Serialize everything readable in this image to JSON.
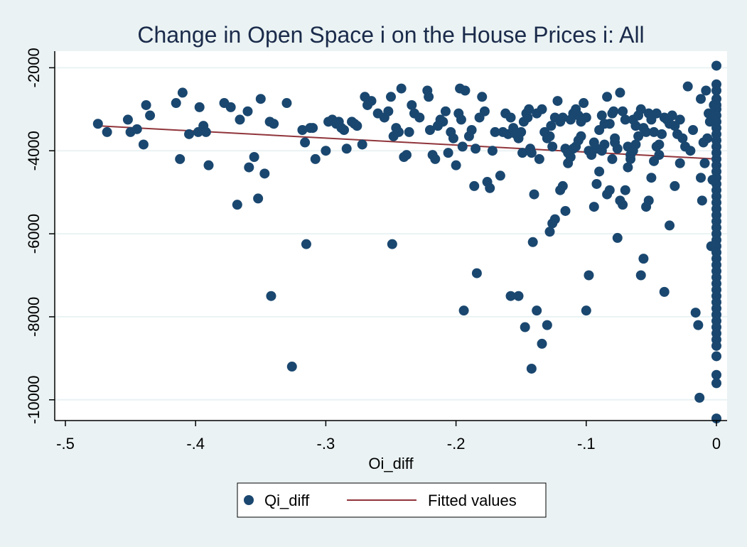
{
  "chart_data": {
    "type": "scatter",
    "title": "Change in Open Space i on the House Prices i: All",
    "xlabel": "Oi_diff",
    "ylabel": "",
    "xlim": [
      -0.5,
      0
    ],
    "ylim": [
      -10500,
      -1600
    ],
    "x_ticks": [
      -0.5,
      -0.4,
      -0.3,
      -0.2,
      -0.1,
      0
    ],
    "x_tick_labels": [
      "-.5",
      "-.4",
      "-.3",
      "-.2",
      "-.1",
      "0"
    ],
    "y_ticks": [
      -2000,
      -4000,
      -6000,
      -8000,
      -10000
    ],
    "y_tick_labels": [
      "-2000",
      "-4000",
      "-6000",
      "-8000",
      "-10000"
    ],
    "grid": true,
    "legend_position": "bottom",
    "colors": {
      "markers": "#1a476f",
      "fit_line": "#90353b",
      "background": "#eaf2f3",
      "plot_area": "#ffffff",
      "grid": "#eaf2f3"
    },
    "series": [
      {
        "name": "Qi_diff",
        "kind": "scatter",
        "points": [
          [
            -0.475,
            -3350
          ],
          [
            -0.468,
            -3550
          ],
          [
            -0.452,
            -3250
          ],
          [
            -0.45,
            -3550
          ],
          [
            -0.445,
            -3480
          ],
          [
            -0.44,
            -3850
          ],
          [
            -0.438,
            -2900
          ],
          [
            -0.435,
            -3150
          ],
          [
            -0.415,
            -2850
          ],
          [
            -0.412,
            -4200
          ],
          [
            -0.41,
            -2600
          ],
          [
            -0.405,
            -3600
          ],
          [
            -0.398,
            -3550
          ],
          [
            -0.397,
            -2950
          ],
          [
            -0.394,
            -3400
          ],
          [
            -0.392,
            -3550
          ],
          [
            -0.39,
            -4350
          ],
          [
            -0.378,
            -2850
          ],
          [
            -0.373,
            -2950
          ],
          [
            -0.368,
            -5300
          ],
          [
            -0.366,
            -3250
          ],
          [
            -0.36,
            -3050
          ],
          [
            -0.359,
            -4400
          ],
          [
            -0.355,
            -4150
          ],
          [
            -0.352,
            -5150
          ],
          [
            -0.35,
            -2750
          ],
          [
            -0.347,
            -4550
          ],
          [
            -0.343,
            -3300
          ],
          [
            -0.342,
            -7500
          ],
          [
            -0.34,
            -3350
          ],
          [
            -0.33,
            -2850
          ],
          [
            -0.326,
            -9200
          ],
          [
            -0.318,
            -3500
          ],
          [
            -0.316,
            -3800
          ],
          [
            -0.315,
            -6250
          ],
          [
            -0.312,
            -3450
          ],
          [
            -0.31,
            -3450
          ],
          [
            -0.308,
            -4200
          ],
          [
            -0.3,
            -4000
          ],
          [
            -0.298,
            -3300
          ],
          [
            -0.295,
            -3250
          ],
          [
            -0.292,
            -3350
          ],
          [
            -0.29,
            -3300
          ],
          [
            -0.288,
            -3450
          ],
          [
            -0.286,
            -3500
          ],
          [
            -0.284,
            -3950
          ],
          [
            -0.28,
            -3300
          ],
          [
            -0.278,
            -3350
          ],
          [
            -0.276,
            -3400
          ],
          [
            -0.272,
            -3850
          ],
          [
            -0.27,
            -2700
          ],
          [
            -0.268,
            -2900
          ],
          [
            -0.265,
            -2800
          ],
          [
            -0.26,
            -3100
          ],
          [
            -0.255,
            -3200
          ],
          [
            -0.252,
            -3050
          ],
          [
            -0.25,
            -2700
          ],
          [
            -0.249,
            -6250
          ],
          [
            -0.248,
            -3650
          ],
          [
            -0.246,
            -3450
          ],
          [
            -0.244,
            -3550
          ],
          [
            -0.242,
            -2500
          ],
          [
            -0.24,
            -4150
          ],
          [
            -0.238,
            -4100
          ],
          [
            -0.236,
            -3550
          ],
          [
            -0.234,
            -2900
          ],
          [
            -0.232,
            -3100
          ],
          [
            -0.228,
            -3200
          ],
          [
            -0.222,
            -2550
          ],
          [
            -0.221,
            -2700
          ],
          [
            -0.22,
            -3500
          ],
          [
            -0.218,
            -4100
          ],
          [
            -0.216,
            -4200
          ],
          [
            -0.214,
            -3400
          ],
          [
            -0.212,
            -3250
          ],
          [
            -0.21,
            -3300
          ],
          [
            -0.208,
            -3050
          ],
          [
            -0.206,
            -4050
          ],
          [
            -0.204,
            -3550
          ],
          [
            -0.202,
            -3700
          ],
          [
            -0.2,
            -4350
          ],
          [
            -0.198,
            -3100
          ],
          [
            -0.197,
            -2500
          ],
          [
            -0.196,
            -3250
          ],
          [
            -0.195,
            -3900
          ],
          [
            -0.194,
            -7850
          ],
          [
            -0.193,
            -2550
          ],
          [
            -0.19,
            -3650
          ],
          [
            -0.188,
            -3500
          ],
          [
            -0.186,
            -4850
          ],
          [
            -0.185,
            -3950
          ],
          [
            -0.184,
            -6950
          ],
          [
            -0.182,
            -3200
          ],
          [
            -0.18,
            -2700
          ],
          [
            -0.178,
            -3050
          ],
          [
            -0.176,
            -4750
          ],
          [
            -0.174,
            -4900
          ],
          [
            -0.172,
            -4000
          ],
          [
            -0.17,
            -3550
          ],
          [
            -0.166,
            -4600
          ],
          [
            -0.164,
            -3550
          ],
          [
            -0.162,
            -3100
          ],
          [
            -0.16,
            -3600
          ],
          [
            -0.158,
            -3200
          ],
          [
            -0.156,
            -3450
          ],
          [
            -0.154,
            -3600
          ],
          [
            -0.152,
            -3700
          ],
          [
            -0.15,
            -3550
          ],
          [
            -0.149,
            -4050
          ],
          [
            -0.148,
            -3300
          ],
          [
            -0.146,
            -3100
          ],
          [
            -0.145,
            -3200
          ],
          [
            -0.144,
            -3000
          ],
          [
            -0.143,
            -3950
          ],
          [
            -0.142,
            -4050
          ],
          [
            -0.141,
            -6200
          ],
          [
            -0.14,
            -5050
          ],
          [
            -0.138,
            -3100
          ],
          [
            -0.136,
            -4200
          ],
          [
            -0.134,
            -3000
          ],
          [
            -0.132,
            -3550
          ],
          [
            -0.13,
            -3700
          ],
          [
            -0.128,
            -3650
          ],
          [
            -0.127,
            -3400
          ],
          [
            -0.126,
            -3900
          ],
          [
            -0.124,
            -3200
          ],
          [
            -0.122,
            -2800
          ],
          [
            -0.12,
            -3300
          ],
          [
            -0.118,
            -3200
          ],
          [
            -0.116,
            -3950
          ],
          [
            -0.114,
            -4050
          ],
          [
            -0.112,
            -3250
          ],
          [
            -0.11,
            -3100
          ],
          [
            -0.108,
            -3000
          ],
          [
            -0.106,
            -3150
          ],
          [
            -0.104,
            -3300
          ],
          [
            -0.102,
            -2850
          ],
          [
            -0.1,
            -3200
          ],
          [
            -0.098,
            -4000
          ],
          [
            -0.096,
            -4100
          ],
          [
            -0.094,
            -3800
          ],
          [
            -0.092,
            -3950
          ],
          [
            -0.09,
            -3500
          ],
          [
            -0.088,
            -3150
          ],
          [
            -0.086,
            -3350
          ],
          [
            -0.084,
            -2700
          ],
          [
            -0.082,
            -3350
          ],
          [
            -0.08,
            -3100
          ],
          [
            -0.079,
            -3050
          ],
          [
            -0.078,
            -3700
          ],
          [
            -0.076,
            -3950
          ],
          [
            -0.074,
            -2600
          ],
          [
            -0.072,
            -3050
          ],
          [
            -0.07,
            -3250
          ],
          [
            -0.068,
            -3900
          ],
          [
            -0.066,
            -4100
          ],
          [
            -0.064,
            -3250
          ],
          [
            -0.062,
            -3400
          ],
          [
            -0.06,
            -3150
          ],
          [
            -0.058,
            -3000
          ],
          [
            -0.056,
            -3450
          ],
          [
            -0.054,
            -3550
          ],
          [
            -0.052,
            -3100
          ],
          [
            -0.05,
            -3250
          ],
          [
            -0.048,
            -3550
          ],
          [
            -0.046,
            -3100
          ],
          [
            -0.044,
            -3850
          ],
          [
            -0.042,
            -3600
          ],
          [
            -0.04,
            -3200
          ],
          [
            -0.038,
            -3250
          ],
          [
            -0.036,
            -3350
          ],
          [
            -0.034,
            -3150
          ],
          [
            -0.032,
            -3400
          ],
          [
            -0.03,
            -3600
          ],
          [
            -0.028,
            -3250
          ],
          [
            -0.026,
            -3700
          ],
          [
            -0.158,
            -7500
          ],
          [
            -0.152,
            -7500
          ],
          [
            -0.147,
            -8250
          ],
          [
            -0.142,
            -9250
          ],
          [
            -0.138,
            -7850
          ],
          [
            -0.134,
            -8650
          ],
          [
            -0.13,
            -8200
          ],
          [
            -0.128,
            -5950
          ],
          [
            -0.126,
            -5750
          ],
          [
            -0.124,
            -5650
          ],
          [
            -0.12,
            -4950
          ],
          [
            -0.118,
            -4850
          ],
          [
            -0.116,
            -5450
          ],
          [
            -0.114,
            -4300
          ],
          [
            -0.112,
            -4150
          ],
          [
            -0.11,
            -3950
          ],
          [
            -0.108,
            -3900
          ],
          [
            -0.106,
            -3750
          ],
          [
            -0.104,
            -3650
          ],
          [
            -0.1,
            -7850
          ],
          [
            -0.098,
            -7000
          ],
          [
            -0.094,
            -5350
          ],
          [
            -0.092,
            -4800
          ],
          [
            -0.09,
            -4500
          ],
          [
            -0.088,
            -4000
          ],
          [
            -0.086,
            -3850
          ],
          [
            -0.084,
            -5050
          ],
          [
            -0.082,
            -4950
          ],
          [
            -0.08,
            -4200
          ],
          [
            -0.078,
            -3800
          ],
          [
            -0.076,
            -6100
          ],
          [
            -0.074,
            -5200
          ],
          [
            -0.072,
            -5300
          ],
          [
            -0.07,
            -4950
          ],
          [
            -0.068,
            -4400
          ],
          [
            -0.066,
            -4200
          ],
          [
            -0.064,
            -4000
          ],
          [
            -0.062,
            -3850
          ],
          [
            -0.06,
            -3650
          ],
          [
            -0.058,
            -7000
          ],
          [
            -0.056,
            -6600
          ],
          [
            -0.054,
            -5350
          ],
          [
            -0.052,
            -5200
          ],
          [
            -0.05,
            -4650
          ],
          [
            -0.048,
            -4250
          ],
          [
            -0.046,
            -3900
          ],
          [
            -0.044,
            -4100
          ],
          [
            -0.04,
            -7400
          ],
          [
            -0.036,
            -5800
          ],
          [
            -0.032,
            -4850
          ],
          [
            -0.028,
            -4300
          ],
          [
            -0.024,
            -3900
          ],
          [
            -0.022,
            -2450
          ],
          [
            -0.02,
            -4000
          ],
          [
            -0.018,
            -3500
          ],
          [
            -0.016,
            -7900
          ],
          [
            -0.014,
            -8200
          ],
          [
            -0.013,
            -9950
          ],
          [
            -0.012,
            -4650
          ],
          [
            -0.01,
            -3800
          ],
          [
            -0.008,
            -2550
          ],
          [
            -0.006,
            -3100
          ],
          [
            -0.004,
            -6300
          ],
          [
            -0.003,
            -4700
          ],
          [
            -0.012,
            -2750
          ],
          [
            -0.011,
            -5200
          ],
          [
            -0.009,
            -4300
          ],
          [
            -0.007,
            -3700
          ],
          [
            -0.005,
            -3300
          ],
          [
            -0.002,
            -2900
          ],
          [
            0,
            -1950
          ],
          [
            0,
            -2400
          ],
          [
            0,
            -2550
          ],
          [
            0,
            -2750
          ],
          [
            0,
            -2900
          ],
          [
            0,
            -3000
          ],
          [
            0,
            -3150
          ],
          [
            0,
            -3300
          ],
          [
            0,
            -3450
          ],
          [
            0,
            -3600
          ],
          [
            0,
            -3750
          ],
          [
            0,
            -3900
          ],
          [
            0,
            -4050
          ],
          [
            0,
            -4200
          ],
          [
            0,
            -4350
          ],
          [
            0,
            -4500
          ],
          [
            0,
            -4650
          ],
          [
            0,
            -4800
          ],
          [
            0,
            -4950
          ],
          [
            0,
            -5100
          ],
          [
            0,
            -5250
          ],
          [
            0,
            -5400
          ],
          [
            0,
            -5550
          ],
          [
            0,
            -5700
          ],
          [
            0,
            -5850
          ],
          [
            0,
            -6000
          ],
          [
            0,
            -6150
          ],
          [
            0,
            -6300
          ],
          [
            0,
            -6450
          ],
          [
            0,
            -6600
          ],
          [
            0,
            -6750
          ],
          [
            0,
            -6900
          ],
          [
            0,
            -7050
          ],
          [
            0,
            -7200
          ],
          [
            0,
            -7350
          ],
          [
            0,
            -7500
          ],
          [
            0,
            -7650
          ],
          [
            0,
            -7800
          ],
          [
            0,
            -7950
          ],
          [
            0,
            -8100
          ],
          [
            0,
            -8250
          ],
          [
            0,
            -8400
          ],
          [
            0,
            -8550
          ],
          [
            0,
            -8700
          ],
          [
            0,
            -8950
          ],
          [
            0,
            -9400
          ],
          [
            0,
            -9600
          ],
          [
            0,
            -10450
          ]
        ]
      },
      {
        "name": "Fitted values",
        "kind": "line",
        "points": [
          [
            -0.475,
            -3400
          ],
          [
            0,
            -4200
          ]
        ]
      }
    ]
  }
}
